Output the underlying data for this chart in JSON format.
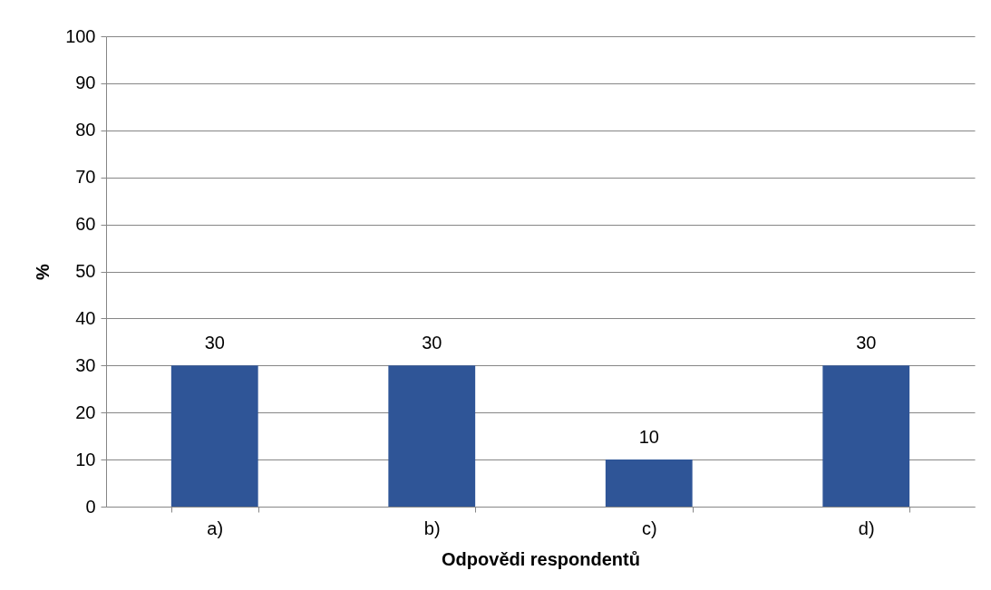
{
  "chart_data": {
    "type": "bar",
    "xlabel": "Odpovědi respondentů",
    "ylabel": "%",
    "categories": [
      "a)",
      "b)",
      "c)",
      "d)"
    ],
    "values": [
      30,
      30,
      10,
      30
    ],
    "color": "#2f5597",
    "ylim": [
      0,
      100
    ],
    "yticks": [
      0,
      10,
      20,
      30,
      40,
      50,
      60,
      70,
      80,
      90,
      100
    ],
    "grid": "y",
    "data_labels": true
  }
}
